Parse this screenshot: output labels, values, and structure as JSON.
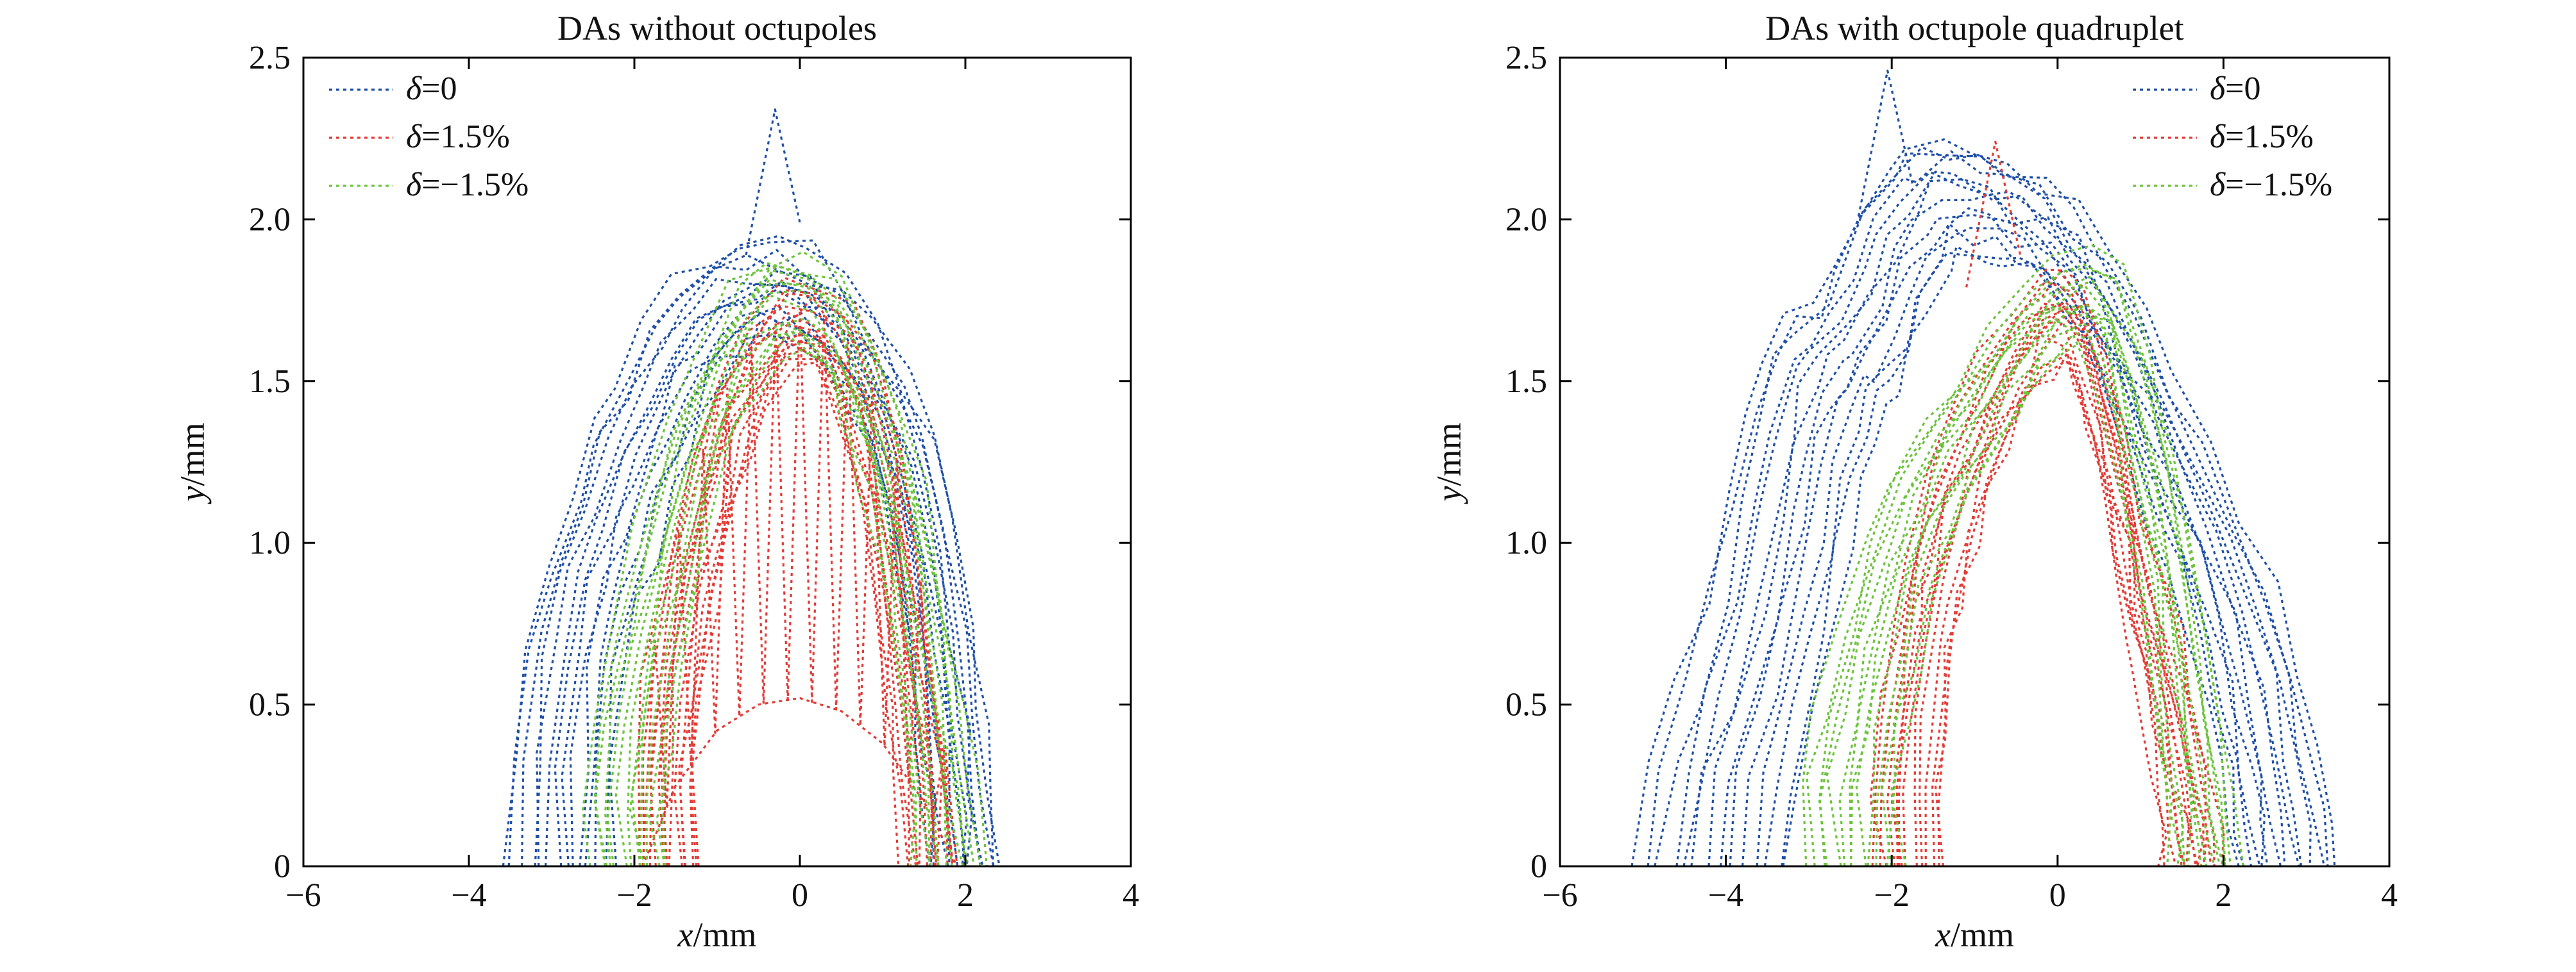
{
  "figure": {
    "colors": {
      "delta_0": "#1f4fa8",
      "delta_pos": "#e33b36",
      "delta_neg": "#6cc33c"
    },
    "legend_symbol": "δ"
  },
  "chart_data": [
    {
      "type": "line",
      "title": "DAs without octupoles",
      "xlabel_var": "x",
      "xlabel_unit": "/mm",
      "ylabel_var": "y",
      "ylabel_unit": "/mm",
      "xlim": [
        -6,
        4
      ],
      "ylim": [
        0,
        2.5
      ],
      "xticks": [
        "−6",
        "−4",
        "−2",
        "0",
        "2",
        "4"
      ],
      "yticks": [
        "0",
        "0.5",
        "1.0",
        "1.5",
        "2.0",
        "2.5"
      ],
      "legend_position": "top-left",
      "series": [
        {
          "name": "=0",
          "color": "#1f4fa8",
          "style": "dotted",
          "envelope_x": [
            -3.55,
            -3.5,
            -3.35,
            -3.1,
            -2.8,
            -2.5,
            -2.2,
            -1.85,
            -1.5,
            -1.1,
            -0.7,
            -0.3,
            0.1,
            0.5,
            0.9,
            1.3,
            1.6,
            1.9,
            2.1,
            2.25,
            2.35,
            2.4
          ],
          "envelope_y": [
            0.0,
            0.35,
            0.7,
            0.95,
            1.15,
            1.35,
            1.52,
            1.68,
            1.8,
            1.88,
            1.92,
            1.93,
            1.9,
            1.82,
            1.7,
            1.52,
            1.32,
            1.05,
            0.75,
            0.45,
            0.2,
            0.0
          ],
          "spike": {
            "x": -0.3,
            "y": 2.34
          }
        },
        {
          "name": "=1.5%",
          "color": "#e33b36",
          "style": "dotted",
          "envelope_x": [
            -1.9,
            -1.95,
            -1.85,
            -1.6,
            -1.3,
            -1.0,
            -0.6,
            -0.2,
            0.2,
            0.6,
            0.9,
            1.2,
            1.45,
            1.65,
            1.8,
            1.9
          ],
          "envelope_y": [
            0.0,
            0.3,
            0.6,
            0.95,
            1.25,
            1.5,
            1.68,
            1.8,
            1.82,
            1.7,
            1.55,
            1.3,
            0.95,
            0.6,
            0.3,
            0.0
          ],
          "inner_x": [
            -1.9,
            -1.5,
            -1.0,
            -0.5,
            0.0,
            0.5,
            1.0,
            1.5,
            1.9
          ],
          "inner_y": [
            0.0,
            0.25,
            0.42,
            0.5,
            0.52,
            0.48,
            0.38,
            0.2,
            0.0
          ]
        },
        {
          "name": "=−1.5%",
          "color": "#6cc33c",
          "style": "dotted",
          "envelope_x": [
            -2.5,
            -2.55,
            -2.45,
            -2.25,
            -1.95,
            -1.6,
            -1.2,
            -0.8,
            -0.35,
            0.1,
            0.5,
            0.85,
            1.2,
            1.5,
            1.75,
            1.95,
            2.1,
            2.2
          ],
          "envelope_y": [
            0.0,
            0.2,
            0.45,
            0.75,
            1.05,
            1.35,
            1.6,
            1.78,
            1.88,
            1.88,
            1.8,
            1.62,
            1.4,
            1.15,
            0.85,
            0.55,
            0.25,
            0.0
          ]
        }
      ]
    },
    {
      "type": "line",
      "title": "DAs with octupole quadruplet",
      "xlabel_var": "x",
      "xlabel_unit": "/mm",
      "ylabel_var": "y",
      "ylabel_unit": "/mm",
      "xlim": [
        -6,
        4
      ],
      "ylim": [
        0,
        2.5
      ],
      "xticks": [
        "−6",
        "−4",
        "−2",
        "0",
        "2",
        "4"
      ],
      "yticks": [
        "0",
        "0.5",
        "1.0",
        "1.5",
        "2.0",
        "2.5"
      ],
      "legend_position": "top-right",
      "series": [
        {
          "name": "=0",
          "color": "#1f4fa8",
          "style": "dotted",
          "envelope_x": [
            -5.1,
            -4.9,
            -4.6,
            -4.25,
            -4.0,
            -3.75,
            -3.55,
            -3.3,
            -3.0,
            -2.7,
            -2.4,
            -2.1,
            -1.8,
            -1.4,
            -1.0,
            -0.6,
            -0.2,
            0.2,
            0.6,
            1.0,
            1.4,
            1.8,
            2.2,
            2.6,
            2.9,
            3.1,
            3.25,
            3.35
          ],
          "envelope_y": [
            0.0,
            0.3,
            0.55,
            0.85,
            1.15,
            1.42,
            1.58,
            1.68,
            1.75,
            1.9,
            2.05,
            2.18,
            2.24,
            2.25,
            2.22,
            2.18,
            2.12,
            2.02,
            1.88,
            1.7,
            1.5,
            1.3,
            1.1,
            0.85,
            0.6,
            0.35,
            0.15,
            0.0
          ],
          "spike": {
            "x": -2.05,
            "y": 2.46
          }
        },
        {
          "name": "=1.5%",
          "color": "#e33b36",
          "style": "dotted",
          "envelope_x": [
            -2.2,
            -2.25,
            -2.15,
            -2.0,
            -1.8,
            -1.55,
            -1.25,
            -0.9,
            -0.55,
            -0.2,
            0.1,
            0.35,
            0.6,
            0.85,
            1.05,
            1.25,
            1.45,
            1.65,
            1.85,
            1.95,
            2.0
          ],
          "envelope_y": [
            0.0,
            0.25,
            0.5,
            0.75,
            0.98,
            1.2,
            1.38,
            1.55,
            1.7,
            1.82,
            1.85,
            1.75,
            1.55,
            1.32,
            1.1,
            0.9,
            0.72,
            0.5,
            0.28,
            0.12,
            0.0
          ],
          "spike": {
            "x": -0.75,
            "y": 2.24
          }
        },
        {
          "name": "=−1.5%",
          "color": "#6cc33c",
          "style": "dotted",
          "envelope_x": [
            -3.0,
            -3.05,
            -2.9,
            -2.65,
            -2.35,
            -2.0,
            -1.6,
            -1.2,
            -0.8,
            -0.4,
            0.0,
            0.4,
            0.75,
            1.05,
            1.35,
            1.6,
            1.8,
            1.95,
            2.1,
            2.2
          ],
          "envelope_y": [
            0.0,
            0.25,
            0.5,
            0.75,
            1.0,
            1.2,
            1.38,
            1.52,
            1.65,
            1.78,
            1.88,
            1.9,
            1.82,
            1.6,
            1.3,
            1.0,
            0.7,
            0.45,
            0.2,
            0.0
          ]
        }
      ]
    }
  ]
}
